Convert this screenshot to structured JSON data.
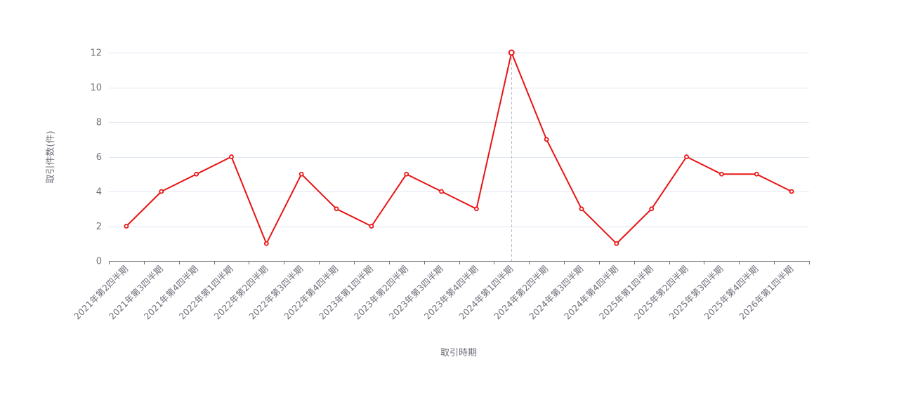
{
  "chart_data": {
    "type": "line",
    "categories": [
      "2021年第2四半期",
      "2021年第3四半期",
      "2021年第4四半期",
      "2022年第1四半期",
      "2022年第2四半期",
      "2022年第3四半期",
      "2022年第4四半期",
      "2023年第1四半期",
      "2023年第2四半期",
      "2023年第3四半期",
      "2023年第4四半期",
      "2024年第1四半期",
      "2024年第2四半期",
      "2024年第3四半期",
      "2024年第4四半期",
      "2025年第1四半期",
      "2025年第2四半期",
      "2025年第3四半期",
      "2025年第4四半期",
      "2026年第1四半期"
    ],
    "series": [
      {
        "values": [
          2,
          4,
          5,
          6,
          1,
          5,
          3,
          2,
          5,
          4,
          3,
          12,
          7,
          3,
          1,
          3,
          6,
          5,
          5,
          4
        ]
      }
    ],
    "xlabel": "取引時期",
    "ylabel": "取引件数(件)",
    "ylim": [
      0,
      12
    ],
    "yticks": [
      0,
      2,
      4,
      6,
      8,
      10,
      12
    ],
    "grid": true,
    "highlighted_category": "2024年第1四半期",
    "colors": {
      "line": "#e81414",
      "grid": "#e0e6f1",
      "axis": "#6e7079",
      "crosshair": "#b9bfcc"
    }
  }
}
